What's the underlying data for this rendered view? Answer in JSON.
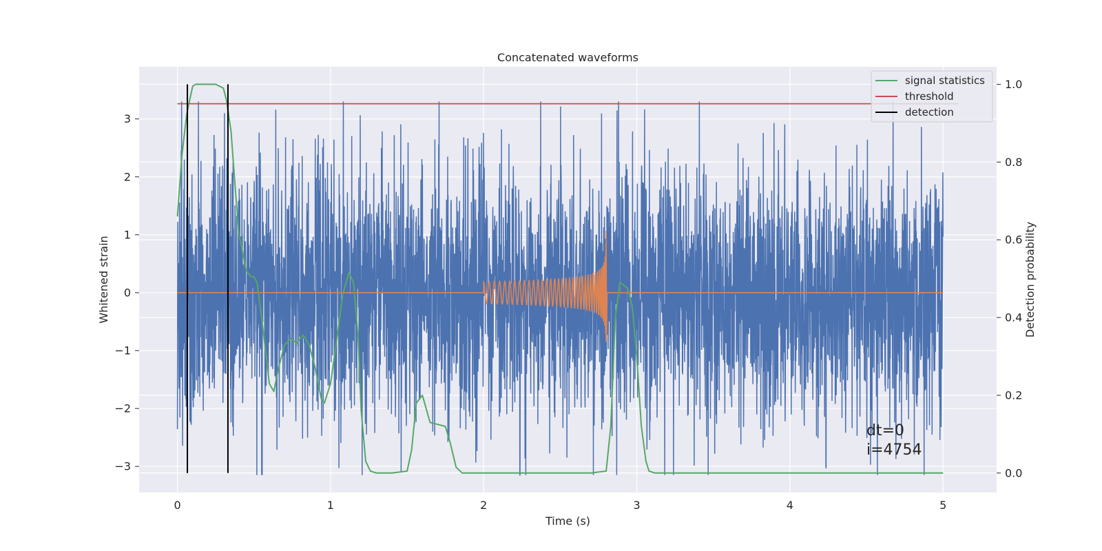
{
  "chart_data": {
    "type": "line",
    "title": "Concatenated waveforms",
    "xlabel": "Time (s)",
    "ylabel": "Whitened strain",
    "ylabel_right": "Detection probability",
    "xlim": [
      -0.25,
      5.35
    ],
    "ylim": [
      -3.45,
      3.9
    ],
    "ylim_right": [
      -0.05,
      1.045
    ],
    "xticks": [
      0,
      1,
      2,
      3,
      4,
      5
    ],
    "xtick_labels": [
      "0",
      "1",
      "2",
      "3",
      "4",
      "5"
    ],
    "yticks": [
      -3,
      -2,
      -1,
      0,
      1,
      2,
      3
    ],
    "ytick_labels": [
      "−3",
      "−2",
      "−1",
      "0",
      "1",
      "2",
      "3"
    ],
    "yticks_right": [
      0.0,
      0.2,
      0.4,
      0.6,
      0.8,
      1.0
    ],
    "ytick_right_labels": [
      "0.0",
      "0.2",
      "0.4",
      "0.6",
      "0.8",
      "1.0"
    ],
    "grid": true,
    "legend_position": "top-right",
    "colors": {
      "strain": "#4c72b0",
      "injected": "#dd8452",
      "signal_statistics": "#55a868",
      "threshold": "#c44e52",
      "detection": "#000000",
      "plot_bg": "#eaeaf2",
      "grid": "#ffffff"
    },
    "series": [
      {
        "name": "",
        "kind": "noisy whitened strain",
        "x_range": [
          0,
          5
        ],
        "y_range": [
          -3.15,
          3.3
        ],
        "points": 4000
      },
      {
        "name": "",
        "kind": "injected chirp waveform",
        "x_range": [
          2.0,
          2.8
        ],
        "y_range": [
          -0.78,
          1.07
        ]
      },
      {
        "name": "signal statistics",
        "axis": "right",
        "x": [
          0,
          0.03,
          0.06,
          0.08,
          0.1,
          0.12,
          0.15,
          0.2,
          0.25,
          0.3,
          0.32,
          0.35,
          0.38,
          0.4,
          0.45,
          0.48,
          0.5,
          0.52,
          0.55,
          0.58,
          0.6,
          0.63,
          0.66,
          0.7,
          0.74,
          0.78,
          0.82,
          0.86,
          0.9,
          0.94,
          0.96,
          1.0,
          1.04,
          1.08,
          1.12,
          1.15,
          1.18,
          1.2,
          1.23,
          1.26,
          1.3,
          1.4,
          1.5,
          1.53,
          1.56,
          1.6,
          1.65,
          1.7,
          1.75,
          1.78,
          1.82,
          1.86,
          1.9,
          2.0,
          2.5,
          2.7,
          2.8,
          2.83,
          2.86,
          2.89,
          2.91,
          2.94,
          2.97,
          3.0,
          3.03,
          3.06,
          3.08,
          3.12,
          3.5,
          4.0,
          4.5,
          5.0
        ],
        "y": [
          0.66,
          0.82,
          0.92,
          0.96,
          0.995,
          1.0,
          1.0,
          1.0,
          1.0,
          0.99,
          0.96,
          0.88,
          0.72,
          0.62,
          0.52,
          0.505,
          0.505,
          0.49,
          0.4,
          0.3,
          0.23,
          0.21,
          0.27,
          0.33,
          0.345,
          0.335,
          0.355,
          0.33,
          0.27,
          0.19,
          0.18,
          0.23,
          0.34,
          0.46,
          0.515,
          0.49,
          0.35,
          0.16,
          0.03,
          0.005,
          0.0,
          0.0,
          0.005,
          0.06,
          0.18,
          0.2,
          0.13,
          0.125,
          0.12,
          0.08,
          0.015,
          0.0,
          0.0,
          0.0,
          0.0,
          0.0,
          0.005,
          0.12,
          0.4,
          0.49,
          0.485,
          0.475,
          0.43,
          0.3,
          0.12,
          0.03,
          0.005,
          0.0,
          0.0,
          0.0,
          0.0,
          0.0
        ]
      },
      {
        "name": "threshold",
        "axis": "right",
        "x": [
          0,
          5.1
        ],
        "y": [
          0.95,
          0.95
        ]
      },
      {
        "name": "detection",
        "kind": "vertical lines",
        "x": [
          0.065,
          0.33
        ]
      }
    ],
    "legend": [
      "signal statistics",
      "threshold",
      "detection"
    ],
    "annotations": [
      "dt=0",
      "i=4754"
    ]
  }
}
